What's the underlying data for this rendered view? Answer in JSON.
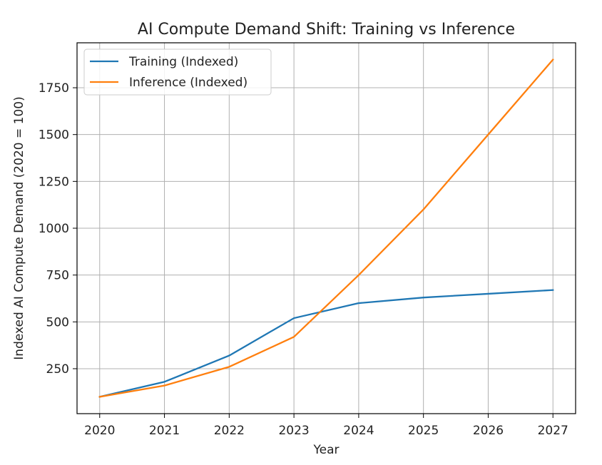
{
  "chart_data": {
    "type": "line",
    "title": "AI Compute Demand Shift: Training vs Inference",
    "xlabel": "Year",
    "ylabel": "Indexed AI Compute Demand (2020 = 100)",
    "x": [
      "2020",
      "2021",
      "2022",
      "2023",
      "2024",
      "2025",
      "2026",
      "2027"
    ],
    "x_ticks": [
      "2020",
      "2021",
      "2022",
      "2023",
      "2024",
      "2025",
      "2026",
      "2027"
    ],
    "y_ticks": [
      "250",
      "500",
      "750",
      "1000",
      "1250",
      "1500",
      "1750"
    ],
    "xlim": [
      2019.65,
      2027.35
    ],
    "ylim": [
      10,
      1990
    ],
    "grid": true,
    "legend_position": "top-left",
    "series": [
      {
        "name": "Training (Indexed)",
        "color": "#1f77b4",
        "values": [
          100,
          180,
          320,
          520,
          600,
          630,
          650,
          670
        ]
      },
      {
        "name": "Inference (Indexed)",
        "color": "#ff7f0e",
        "values": [
          100,
          160,
          260,
          420,
          750,
          1100,
          1500,
          1900
        ]
      }
    ]
  }
}
